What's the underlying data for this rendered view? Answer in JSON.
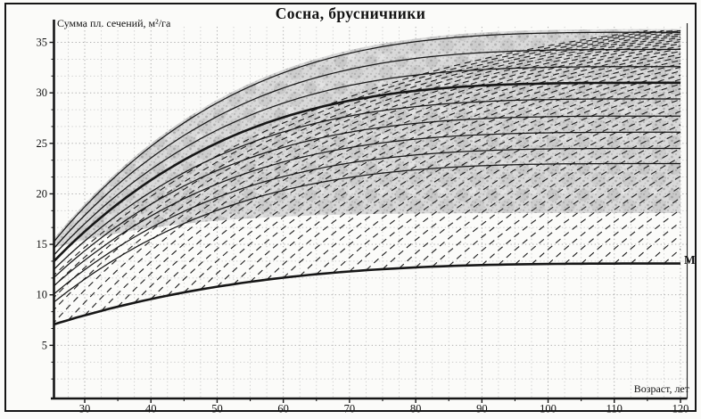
{
  "chart_data": {
    "type": "line",
    "title": "Сосна, брусничники",
    "xlabel": "Возраст, лет",
    "ylabel": "Сумма пл. сечений, м²/га",
    "x_ticks": [
      30,
      40,
      50,
      60,
      70,
      80,
      90,
      100,
      110,
      120
    ],
    "x_minor_tick_step": 5,
    "y_ticks": [
      5,
      10,
      15,
      20,
      25,
      30,
      35
    ],
    "x_range": [
      25,
      120.5
    ],
    "y_range": [
      0,
      36.8
    ],
    "grid": "fine dotted gray, ~2.5-year and ~1.67-unit squares",
    "legend_position": "none",
    "sample_ages": [
      25,
      30,
      40,
      50,
      60,
      70,
      80,
      90,
      100,
      110,
      120
    ],
    "basal_area_curves": [
      {
        "name": "stocking-curve-1-top",
        "style": "solid",
        "thick": false,
        "start": 15.0,
        "end": 36.0,
        "shape_p": 3.6,
        "values": [
          15.0,
          18.7,
          24.7,
          29.0,
          32.0,
          33.9,
          35.1,
          35.7,
          35.9,
          36.0,
          36.0
        ]
      },
      {
        "name": "stocking-curve-2",
        "style": "solid",
        "thick": false,
        "start": 14.35,
        "end": 34.3,
        "shape_p": 3.6,
        "values": [
          14.4,
          17.9,
          23.6,
          27.7,
          30.5,
          32.3,
          33.4,
          34.0,
          34.2,
          34.3,
          34.3
        ]
      },
      {
        "name": "stocking-curve-3",
        "style": "solid",
        "thick": false,
        "start": 13.7,
        "end": 32.6,
        "shape_p": 3.6,
        "values": [
          13.7,
          17.0,
          22.4,
          26.3,
          29.0,
          30.7,
          31.8,
          32.3,
          32.5,
          32.6,
          32.6
        ]
      },
      {
        "name": "stocking-curve-4-main",
        "style": "solid",
        "thick": true,
        "start": 13.1,
        "end": 31.0,
        "shape_p": 3.6,
        "values": [
          13.1,
          16.3,
          21.4,
          25.0,
          27.6,
          29.2,
          30.2,
          30.7,
          30.9,
          31.0,
          31.0
        ]
      },
      {
        "name": "stocking-curve-5",
        "style": "solid",
        "thick": false,
        "start": 12.3,
        "end": 29.4,
        "shape_p": 3.6,
        "values": [
          12.3,
          15.3,
          20.2,
          23.7,
          26.1,
          27.7,
          28.6,
          29.1,
          29.3,
          29.4,
          29.4
        ]
      },
      {
        "name": "stocking-curve-6",
        "style": "solid",
        "thick": false,
        "start": 11.5,
        "end": 27.7,
        "shape_p": 3.6,
        "values": [
          11.5,
          14.4,
          19.0,
          22.3,
          24.6,
          26.1,
          27.0,
          27.4,
          27.6,
          27.7,
          27.7
        ]
      },
      {
        "name": "stocking-curve-7",
        "style": "solid",
        "thick": false,
        "start": 10.7,
        "end": 26.1,
        "shape_p": 3.6,
        "values": [
          10.7,
          13.4,
          17.8,
          21.0,
          23.2,
          24.6,
          25.4,
          25.9,
          26.0,
          26.1,
          26.1
        ]
      },
      {
        "name": "stocking-curve-8",
        "style": "solid",
        "thick": false,
        "start": 9.9,
        "end": 24.5,
        "shape_p": 3.6,
        "values": [
          9.9,
          12.5,
          16.6,
          19.6,
          21.7,
          23.1,
          23.9,
          24.3,
          24.4,
          24.5,
          24.5
        ]
      },
      {
        "name": "stocking-curve-9-bottom",
        "style": "solid",
        "thick": false,
        "start": 9.1,
        "end": 23.0,
        "shape_p": 3.6,
        "values": [
          9.1,
          11.6,
          15.5,
          18.4,
          20.3,
          21.6,
          22.4,
          22.8,
          23.0,
          23.0,
          23.0
        ]
      }
    ],
    "min_basal_area_curve": {
      "name": "minimum-basal-area",
      "label": "М",
      "style": "solid",
      "thick": true,
      "start": 7.0,
      "end": 13.1,
      "shape_p": 3.2,
      "values": [
        7.0,
        8.0,
        9.6,
        10.8,
        11.7,
        12.3,
        12.7,
        12.9,
        13.0,
        13.1,
        13.1
      ]
    },
    "optimal_zone": {
      "fill": "gray stipple",
      "top_follows": "stocking-curve-1-top",
      "bottom": {
        "start": 14.6,
        "end": 18.1,
        "shape_p": 5,
        "values": [
          14.6,
          15.4,
          16.6,
          17.3,
          17.8,
          18.0,
          18.1,
          18.1,
          18.1,
          18.1,
          18.1
        ]
      }
    },
    "thinning_trajectories": {
      "style": "dashed",
      "starts_on": "minimum-basal-area curve",
      "asymptote": 40,
      "tau_years": 45,
      "start_ages": [
        15,
        17.5,
        20,
        22.5,
        25,
        27.5,
        30,
        32.5,
        35,
        37.5,
        40,
        42.5,
        45,
        47.5,
        50,
        52.5,
        55,
        57.5,
        60,
        62.5,
        65,
        67.5,
        70,
        72.5,
        75,
        77.5,
        80,
        82.5,
        85,
        87.5,
        90,
        92.5,
        95,
        97.5,
        100,
        102.5,
        105,
        107.5,
        110,
        112.5,
        115,
        117.5
      ]
    },
    "colors": {
      "line": "#161616",
      "grid_minor": "#c9c9c9",
      "grid_major": "#a4a4a4",
      "zone_base": "#d9d9d9",
      "paper": "#fbfbf9"
    }
  },
  "labels": {
    "title": "Сосна, брусничники",
    "ylabel": "Сумма пл. сечений, м²/га",
    "xlabel": "Возраст, лет",
    "m": "М"
  }
}
